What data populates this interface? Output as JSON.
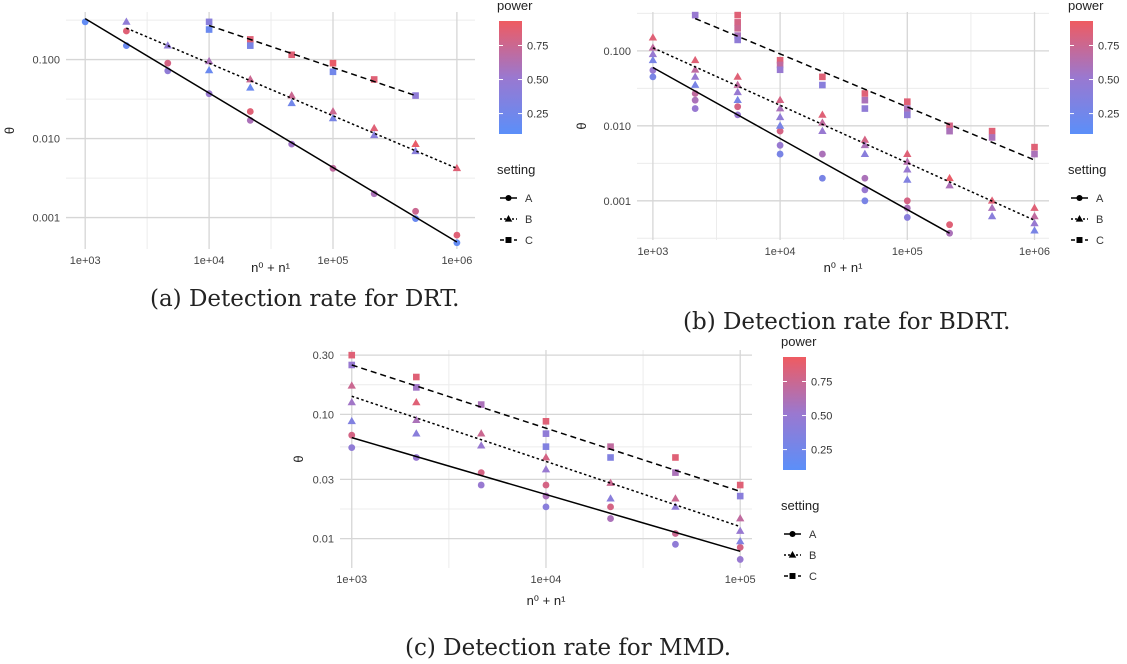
{
  "captions": {
    "a": "(a) Detection rate for DRT.",
    "b": "(b) Detection rate for BDRT.",
    "c": "(c) Detection rate for MMD."
  },
  "colors": {
    "power_low": "#5b8ff9",
    "power_mid": "#9a78d0",
    "power_high": "#ef5b61",
    "grid_major": "#d6d6d6",
    "grid_minor": "#ececec",
    "line": "#000000"
  },
  "legend": {
    "power_title": "power",
    "power_ticks": [
      0.25,
      0.5,
      0.75
    ],
    "power_tick_labels": [
      "0.25",
      "0.50",
      "0.75"
    ],
    "power_range": [
      0.1,
      0.93
    ],
    "setting_title": "setting",
    "settings": [
      {
        "label": "A",
        "shape": "circle",
        "linetype": "solid"
      },
      {
        "label": "B",
        "shape": "triangle",
        "linetype": "dotted"
      },
      {
        "label": "C",
        "shape": "square",
        "linetype": "dashed"
      }
    ]
  },
  "chart_data": [
    {
      "id": "a",
      "type": "scatter",
      "scale": "log-log",
      "xlabel": "n⁰ + n¹",
      "ylabel": "θ",
      "x_ticks": [
        1000,
        10000,
        100000,
        1000000
      ],
      "x_tick_labels": [
        "1e+03",
        "1e+04",
        "1e+05",
        "1e+06"
      ],
      "y_ticks": [
        0.001,
        0.01,
        0.1
      ],
      "y_tick_labels": [
        "0.001",
        "0.010",
        "0.100"
      ],
      "xlim": [
        700,
        1400000
      ],
      "ylim": [
        0.0004,
        0.4
      ],
      "series": [
        {
          "name": "A",
          "line": [
            [
              1000,
              0.33
            ],
            [
              1000000,
              0.00049
            ]
          ],
          "points": [
            [
              1000,
              0.3,
              0.15
            ],
            [
              2150,
              0.23,
              0.85
            ],
            [
              2150,
              0.15,
              0.2
            ],
            [
              4640,
              0.09,
              0.8
            ],
            [
              4640,
              0.072,
              0.45
            ],
            [
              10000,
              0.037,
              0.5
            ],
            [
              21500,
              0.022,
              0.85
            ],
            [
              21500,
              0.017,
              0.6
            ],
            [
              46400,
              0.0085,
              0.55
            ],
            [
              100000,
              0.0042,
              0.7
            ],
            [
              215000,
              0.002,
              0.6
            ],
            [
              464000,
              0.0012,
              0.75
            ],
            [
              464000,
              0.00097,
              0.2
            ],
            [
              1000000,
              0.0006,
              0.85
            ],
            [
              1000000,
              0.00048,
              0.15
            ]
          ]
        },
        {
          "name": "B",
          "line": [
            [
              2150,
              0.25
            ],
            [
              1000000,
              0.0042
            ]
          ],
          "points": [
            [
              2150,
              0.3,
              0.45
            ],
            [
              4640,
              0.15,
              0.45
            ],
            [
              10000,
              0.095,
              0.6
            ],
            [
              10000,
              0.073,
              0.2
            ],
            [
              21500,
              0.056,
              0.75
            ],
            [
              21500,
              0.044,
              0.2
            ],
            [
              46400,
              0.035,
              0.75
            ],
            [
              46400,
              0.028,
              0.25
            ],
            [
              100000,
              0.022,
              0.75
            ],
            [
              100000,
              0.018,
              0.3
            ],
            [
              215000,
              0.0135,
              0.85
            ],
            [
              215000,
              0.011,
              0.4
            ],
            [
              464000,
              0.0085,
              0.9
            ],
            [
              464000,
              0.0069,
              0.4
            ],
            [
              1000000,
              0.0042,
              0.85
            ]
          ]
        },
        {
          "name": "C",
          "line": [
            [
              10000,
              0.27
            ],
            [
              464000,
              0.035
            ]
          ],
          "points": [
            [
              10000,
              0.3,
              0.4
            ],
            [
              10000,
              0.24,
              0.2
            ],
            [
              21500,
              0.18,
              0.85
            ],
            [
              21500,
              0.15,
              0.3
            ],
            [
              46400,
              0.115,
              0.85
            ],
            [
              100000,
              0.09,
              0.9
            ],
            [
              100000,
              0.07,
              0.25
            ],
            [
              215000,
              0.056,
              0.85
            ],
            [
              464000,
              0.035,
              0.45
            ]
          ]
        }
      ]
    },
    {
      "id": "b",
      "type": "scatter",
      "scale": "log-log",
      "xlabel": "n⁰ + n¹",
      "ylabel": "θ",
      "x_ticks": [
        1000,
        10000,
        100000,
        1000000
      ],
      "x_tick_labels": [
        "1e+03",
        "1e+04",
        "1e+05",
        "1e+06"
      ],
      "y_ticks": [
        0.001,
        0.01,
        0.1
      ],
      "y_tick_labels": [
        "0.001",
        "0.010",
        "0.100"
      ],
      "xlim": [
        750,
        1300000
      ],
      "ylim": [
        0.0003,
        0.33
      ],
      "series": [
        {
          "name": "A",
          "line": [
            [
              1000,
              0.06
            ],
            [
              215000,
              0.00037
            ]
          ],
          "points": [
            [
              1000,
              0.055,
              0.5
            ],
            [
              1000,
              0.045,
              0.3
            ],
            [
              2150,
              0.027,
              0.7
            ],
            [
              2150,
              0.022,
              0.6
            ],
            [
              2150,
              0.017,
              0.5
            ],
            [
              4640,
              0.018,
              0.8
            ],
            [
              4640,
              0.014,
              0.5
            ],
            [
              10000,
              0.0085,
              0.8
            ],
            [
              10000,
              0.0055,
              0.5
            ],
            [
              10000,
              0.0042,
              0.3
            ],
            [
              21500,
              0.0042,
              0.6
            ],
            [
              21500,
              0.002,
              0.3
            ],
            [
              46400,
              0.002,
              0.6
            ],
            [
              46400,
              0.0014,
              0.5
            ],
            [
              46400,
              0.001,
              0.3
            ],
            [
              100000,
              0.001,
              0.8
            ],
            [
              100000,
              0.0008,
              0.6
            ],
            [
              100000,
              0.0006,
              0.4
            ],
            [
              215000,
              0.00048,
              0.85
            ],
            [
              215000,
              0.00037,
              0.6
            ]
          ]
        },
        {
          "name": "B",
          "line": [
            [
              1000,
              0.11
            ],
            [
              1000000,
              0.00055
            ]
          ],
          "points": [
            [
              1000,
              0.15,
              0.85
            ],
            [
              1000,
              0.11,
              0.7
            ],
            [
              1000,
              0.09,
              0.5
            ],
            [
              1000,
              0.075,
              0.3
            ],
            [
              2150,
              0.075,
              0.85
            ],
            [
              2150,
              0.056,
              0.7
            ],
            [
              2150,
              0.045,
              0.5
            ],
            [
              2150,
              0.035,
              0.3
            ],
            [
              4640,
              0.045,
              0.85
            ],
            [
              4640,
              0.035,
              0.7
            ],
            [
              4640,
              0.028,
              0.5
            ],
            [
              4640,
              0.022,
              0.3
            ],
            [
              10000,
              0.022,
              0.8
            ],
            [
              10000,
              0.017,
              0.6
            ],
            [
              10000,
              0.013,
              0.45
            ],
            [
              10000,
              0.01,
              0.3
            ],
            [
              21500,
              0.014,
              0.85
            ],
            [
              21500,
              0.011,
              0.7
            ],
            [
              21500,
              0.0085,
              0.5
            ],
            [
              46400,
              0.0065,
              0.8
            ],
            [
              46400,
              0.0055,
              0.6
            ],
            [
              46400,
              0.0042,
              0.4
            ],
            [
              100000,
              0.0042,
              0.85
            ],
            [
              100000,
              0.0033,
              0.65
            ],
            [
              100000,
              0.0026,
              0.5
            ],
            [
              100000,
              0.0019,
              0.35
            ],
            [
              215000,
              0.002,
              0.9
            ],
            [
              215000,
              0.0016,
              0.6
            ],
            [
              464000,
              0.001,
              0.85
            ],
            [
              464000,
              0.0008,
              0.6
            ],
            [
              464000,
              0.00062,
              0.4
            ],
            [
              1000000,
              0.0008,
              0.85
            ],
            [
              1000000,
              0.00062,
              0.7
            ],
            [
              1000000,
              0.0005,
              0.5
            ],
            [
              1000000,
              0.0004,
              0.3
            ]
          ]
        },
        {
          "name": "C",
          "line": [
            [
              2150,
              0.27
            ],
            [
              1000000,
              0.0035
            ]
          ],
          "points": [
            [
              2150,
              0.3,
              0.5
            ],
            [
              4640,
              0.3,
              0.85
            ],
            [
              4640,
              0.24,
              0.8
            ],
            [
              4640,
              0.2,
              0.75
            ],
            [
              4640,
              0.16,
              0.6
            ],
            [
              4640,
              0.14,
              0.45
            ],
            [
              10000,
              0.075,
              0.85
            ],
            [
              10000,
              0.065,
              0.7
            ],
            [
              10000,
              0.056,
              0.5
            ],
            [
              21500,
              0.045,
              0.85
            ],
            [
              21500,
              0.035,
              0.4
            ],
            [
              46400,
              0.027,
              0.85
            ],
            [
              46400,
              0.022,
              0.6
            ],
            [
              46400,
              0.017,
              0.45
            ],
            [
              100000,
              0.021,
              0.85
            ],
            [
              100000,
              0.017,
              0.6
            ],
            [
              100000,
              0.014,
              0.45
            ],
            [
              215000,
              0.01,
              0.8
            ],
            [
              215000,
              0.0085,
              0.6
            ],
            [
              464000,
              0.0085,
              0.85
            ],
            [
              464000,
              0.007,
              0.6
            ],
            [
              1000000,
              0.0052,
              0.85
            ],
            [
              1000000,
              0.0042,
              0.6
            ]
          ]
        }
      ]
    },
    {
      "id": "c",
      "type": "scatter",
      "scale": "log-log",
      "xlabel": "n⁰ + n¹",
      "ylabel": "θ",
      "x_ticks": [
        1000,
        10000,
        100000
      ],
      "x_tick_labels": [
        "1e+03",
        "1e+04",
        "1e+05"
      ],
      "y_ticks": [
        0.01,
        0.03,
        0.1,
        0.3
      ],
      "y_tick_labels": [
        "0.01",
        "0.03",
        "0.10",
        "0.30"
      ],
      "xlim": [
        870,
        115000
      ],
      "ylim": [
        0.0058,
        0.33
      ],
      "series": [
        {
          "name": "A",
          "line": [
            [
              1000,
              0.065
            ],
            [
              100000,
              0.0079
            ]
          ],
          "points": [
            [
              1000,
              0.068,
              0.8
            ],
            [
              1000,
              0.054,
              0.45
            ],
            [
              2150,
              0.045,
              0.5
            ],
            [
              4640,
              0.034,
              0.8
            ],
            [
              4640,
              0.027,
              0.5
            ],
            [
              10000,
              0.027,
              0.8
            ],
            [
              10000,
              0.022,
              0.6
            ],
            [
              10000,
              0.018,
              0.4
            ],
            [
              21500,
              0.018,
              0.8
            ],
            [
              21500,
              0.0145,
              0.6
            ],
            [
              46400,
              0.011,
              0.75
            ],
            [
              46400,
              0.009,
              0.45
            ],
            [
              100000,
              0.0085,
              0.8
            ],
            [
              100000,
              0.0068,
              0.5
            ]
          ]
        },
        {
          "name": "B",
          "line": [
            [
              1000,
              0.14
            ],
            [
              100000,
              0.0125
            ]
          ],
          "points": [
            [
              1000,
              0.17,
              0.75
            ],
            [
              1000,
              0.125,
              0.55
            ],
            [
              1000,
              0.088,
              0.35
            ],
            [
              2150,
              0.125,
              0.85
            ],
            [
              2150,
              0.09,
              0.6
            ],
            [
              2150,
              0.07,
              0.4
            ],
            [
              4640,
              0.07,
              0.75
            ],
            [
              4640,
              0.056,
              0.5
            ],
            [
              10000,
              0.045,
              0.8
            ],
            [
              10000,
              0.036,
              0.5
            ],
            [
              21500,
              0.028,
              0.75
            ],
            [
              21500,
              0.021,
              0.4
            ],
            [
              46400,
              0.021,
              0.75
            ],
            [
              46400,
              0.018,
              0.45
            ],
            [
              100000,
              0.0145,
              0.7
            ],
            [
              100000,
              0.0115,
              0.5
            ],
            [
              100000,
              0.0095,
              0.35
            ]
          ]
        },
        {
          "name": "C",
          "line": [
            [
              1000,
              0.25
            ],
            [
              100000,
              0.024
            ]
          ],
          "points": [
            [
              1000,
              0.3,
              0.85
            ],
            [
              1000,
              0.25,
              0.5
            ],
            [
              2150,
              0.2,
              0.85
            ],
            [
              2150,
              0.165,
              0.55
            ],
            [
              4640,
              0.12,
              0.6
            ],
            [
              10000,
              0.088,
              0.85
            ],
            [
              10000,
              0.07,
              0.45
            ],
            [
              10000,
              0.055,
              0.35
            ],
            [
              21500,
              0.055,
              0.7
            ],
            [
              21500,
              0.045,
              0.35
            ],
            [
              46400,
              0.045,
              0.85
            ],
            [
              46400,
              0.034,
              0.6
            ],
            [
              100000,
              0.027,
              0.85
            ],
            [
              100000,
              0.022,
              0.4
            ]
          ]
        }
      ]
    }
  ]
}
